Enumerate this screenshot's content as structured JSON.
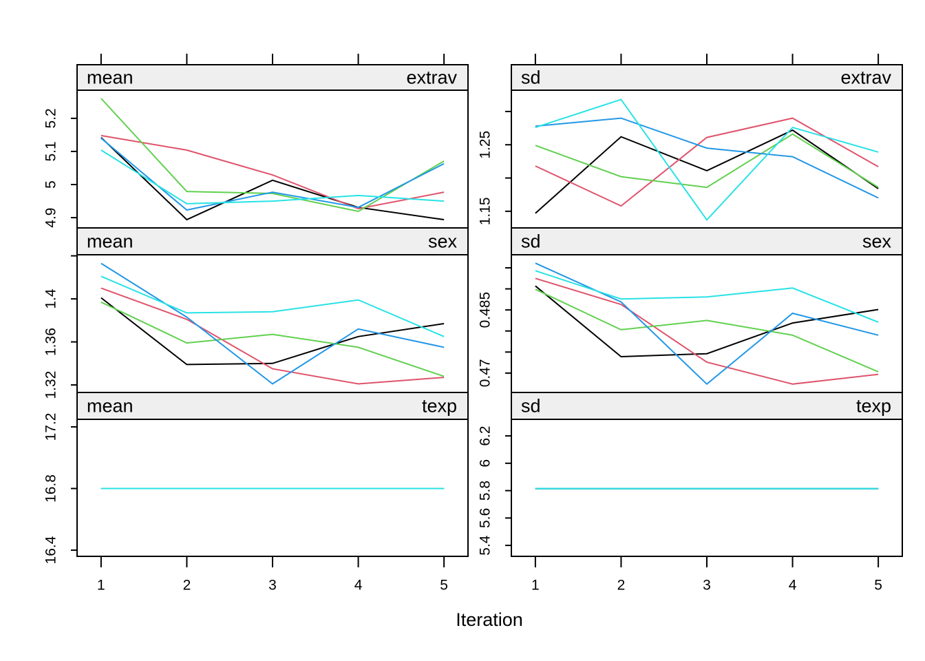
{
  "x_label": "Iteration",
  "chart_data": [
    {
      "type": "line",
      "statistic": "mean",
      "variable": "extrav",
      "x": [
        1,
        2,
        3,
        4,
        5
      ],
      "xlim": [
        0.72,
        5.28
      ],
      "xticks": [
        1,
        2,
        3,
        4,
        5
      ],
      "ylim": [
        4.869,
        5.285
      ],
      "yticks": [
        4.9,
        5.0,
        5.1,
        5.2
      ],
      "series": [
        {
          "color": "#000000",
          "values": [
            5.142,
            4.894,
            5.013,
            4.931,
            4.894
          ]
        },
        {
          "color": "#DF536B",
          "values": [
            5.148,
            5.104,
            5.029,
            4.927,
            4.977
          ]
        },
        {
          "color": "#61D04F",
          "values": [
            5.26,
            4.979,
            4.973,
            4.919,
            5.071
          ]
        },
        {
          "color": "#2297E6",
          "values": [
            5.14,
            4.923,
            4.977,
            4.931,
            5.063
          ]
        },
        {
          "color": "#28E2E5",
          "values": [
            5.104,
            4.942,
            4.95,
            4.967,
            4.95
          ]
        }
      ]
    },
    {
      "type": "line",
      "statistic": "sd",
      "variable": "extrav",
      "x": [
        1,
        2,
        3,
        4,
        5
      ],
      "xlim": [
        0.72,
        5.28
      ],
      "xticks": [
        1,
        2,
        3,
        4,
        5
      ],
      "ylim": [
        1.125,
        1.332
      ],
      "yticks": [
        1.15,
        {
          "value": 1.2,
          "label": null
        },
        1.25,
        {
          "value": 1.3,
          "label": null
        }
      ],
      "series": [
        {
          "color": "#000000",
          "values": [
            1.147,
            1.262,
            1.211,
            1.272,
            1.184
          ]
        },
        {
          "color": "#DF536B",
          "values": [
            1.218,
            1.158,
            1.261,
            1.29,
            1.217
          ]
        },
        {
          "color": "#61D04F",
          "values": [
            1.249,
            1.202,
            1.186,
            1.266,
            1.186
          ]
        },
        {
          "color": "#2297E6",
          "values": [
            1.278,
            1.29,
            1.245,
            1.232,
            1.17
          ]
        },
        {
          "color": "#28E2E5",
          "values": [
            1.276,
            1.318,
            1.137,
            1.276,
            1.239
          ]
        }
      ]
    },
    {
      "type": "line",
      "statistic": "mean",
      "variable": "sex",
      "x": [
        1,
        2,
        3,
        4,
        5
      ],
      "xlim": [
        0.72,
        5.28
      ],
      "xticks": [
        1,
        2,
        3,
        4,
        5
      ],
      "ylim": [
        1.313,
        1.441
      ],
      "yticks": [
        1.32,
        1.36,
        1.4,
        {
          "value": 1.44,
          "label": null
        }
      ],
      "series": [
        {
          "color": "#000000",
          "values": [
            1.401,
            1.339,
            1.34,
            1.365,
            1.377
          ]
        },
        {
          "color": "#DF536B",
          "values": [
            1.41,
            1.381,
            1.335,
            1.321,
            1.327
          ]
        },
        {
          "color": "#61D04F",
          "values": [
            1.397,
            1.359,
            1.367,
            1.355,
            1.328
          ]
        },
        {
          "color": "#2297E6",
          "values": [
            1.433,
            1.383,
            1.321,
            1.372,
            1.355
          ]
        },
        {
          "color": "#28E2E5",
          "values": [
            1.421,
            1.387,
            1.388,
            1.399,
            1.365
          ]
        }
      ]
    },
    {
      "type": "line",
      "statistic": "sd",
      "variable": "sex",
      "x": [
        1,
        2,
        3,
        4,
        5
      ],
      "xlim": [
        0.72,
        5.28
      ],
      "xticks": [
        1,
        2,
        3,
        4,
        5
      ],
      "ylim": [
        0.4654,
        0.4981
      ],
      "yticks": [
        0.47,
        {
          "value": 0.475,
          "label": null
        },
        {
          "value": 0.48,
          "label": null
        },
        0.485,
        {
          "value": 0.49,
          "label": null
        },
        {
          "value": 0.495,
          "label": null
        }
      ],
      "series": [
        {
          "color": "#000000",
          "values": [
            0.4907,
            0.4739,
            0.4746,
            0.4819,
            0.4851
          ]
        },
        {
          "color": "#DF536B",
          "values": [
            0.4925,
            0.4863,
            0.4726,
            0.4674,
            0.4697
          ]
        },
        {
          "color": "#61D04F",
          "values": [
            0.4899,
            0.4803,
            0.4825,
            0.479,
            0.4703
          ]
        },
        {
          "color": "#2297E6",
          "values": [
            0.4961,
            0.4869,
            0.4674,
            0.4842,
            0.479
          ]
        },
        {
          "color": "#28E2E5",
          "values": [
            0.4943,
            0.4876,
            0.4881,
            0.4902,
            0.4821
          ]
        }
      ]
    },
    {
      "type": "line",
      "statistic": "mean",
      "variable": "texp",
      "x": [
        1,
        2,
        3,
        4,
        5
      ],
      "xlim": [
        0.72,
        5.28
      ],
      "xticks": [
        1,
        2,
        3,
        4,
        5
      ],
      "ylim": [
        16.36,
        17.249
      ],
      "yticks": [
        16.4,
        16.8,
        17.2
      ],
      "series": [
        {
          "color": "#000000",
          "values": [
            16.8,
            16.8,
            16.8,
            16.8,
            16.8
          ]
        },
        {
          "color": "#DF536B",
          "values": [
            16.8,
            16.8,
            16.8,
            16.8,
            16.8
          ]
        },
        {
          "color": "#61D04F",
          "values": [
            16.8,
            16.8,
            16.8,
            16.8,
            16.8
          ]
        },
        {
          "color": "#2297E6",
          "values": [
            16.8,
            16.8,
            16.8,
            16.8,
            16.8
          ]
        },
        {
          "color": "#28E2E5",
          "values": [
            16.8,
            16.8,
            16.8,
            16.8,
            16.8
          ]
        }
      ]
    },
    {
      "type": "line",
      "statistic": "sd",
      "variable": "texp",
      "x": [
        1,
        2,
        3,
        4,
        5
      ],
      "xlim": [
        0.72,
        5.28
      ],
      "xticks": [
        1,
        2,
        3,
        4,
        5
      ],
      "ylim": [
        5.32,
        6.321
      ],
      "yticks": [
        5.4,
        5.6,
        5.8,
        6.0,
        6.2
      ],
      "series": [
        {
          "color": "#000000",
          "values": [
            5.815,
            5.815,
            5.815,
            5.815,
            5.815
          ]
        },
        {
          "color": "#DF536B",
          "values": [
            5.815,
            5.815,
            5.815,
            5.815,
            5.815
          ]
        },
        {
          "color": "#61D04F",
          "values": [
            5.815,
            5.815,
            5.815,
            5.815,
            5.815
          ]
        },
        {
          "color": "#2297E6",
          "values": [
            5.815,
            5.815,
            5.815,
            5.815,
            5.815
          ]
        },
        {
          "color": "#28E2E5",
          "values": [
            5.815,
            5.815,
            5.815,
            5.815,
            5.815
          ]
        }
      ]
    }
  ]
}
